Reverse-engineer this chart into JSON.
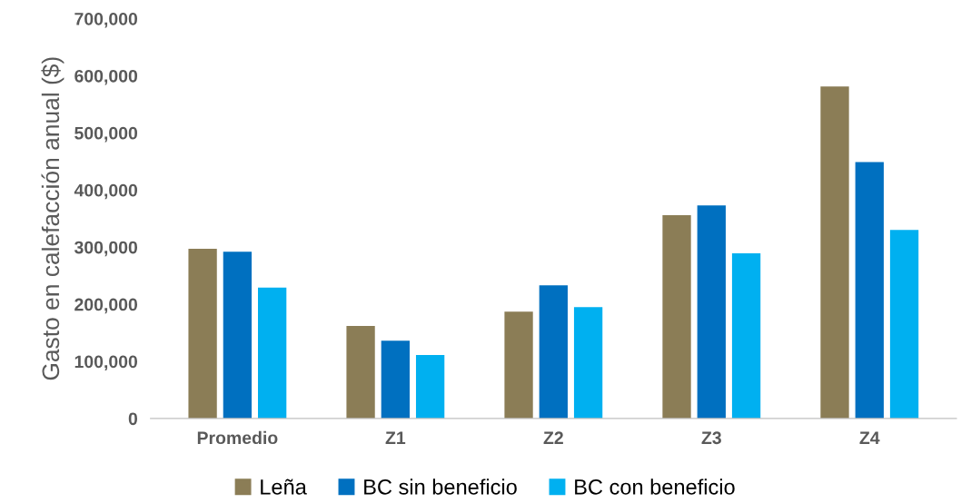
{
  "chart_data": {
    "type": "bar",
    "ylabel": "Gasto en calefacción anual ($)",
    "categories": [
      "Promedio",
      "Z1",
      "Z2",
      "Z3",
      "Z4"
    ],
    "series": [
      {
        "name": "Leña",
        "color": "#8b7d56",
        "values": [
          297000,
          162000,
          187000,
          356000,
          581000
        ]
      },
      {
        "name": "BC sin beneficio",
        "color": "#0070c0",
        "values": [
          292000,
          136000,
          233000,
          373000,
          449000
        ]
      },
      {
        "name": "BC con beneficio",
        "color": "#00b0f0",
        "values": [
          229000,
          111000,
          195000,
          289000,
          330000
        ]
      }
    ],
    "ylim": [
      0,
      700000
    ],
    "yticks": [
      {
        "value": 0,
        "label": "0"
      },
      {
        "value": 100000,
        "label": "100,000"
      },
      {
        "value": 200000,
        "label": "200,000"
      },
      {
        "value": 300000,
        "label": "300,000"
      },
      {
        "value": 400000,
        "label": "400,000"
      },
      {
        "value": 500000,
        "label": "500,000"
      },
      {
        "value": 600000,
        "label": "600,000"
      },
      {
        "value": 700000,
        "label": "700,000"
      }
    ],
    "grid": false,
    "legend": "bottom"
  }
}
